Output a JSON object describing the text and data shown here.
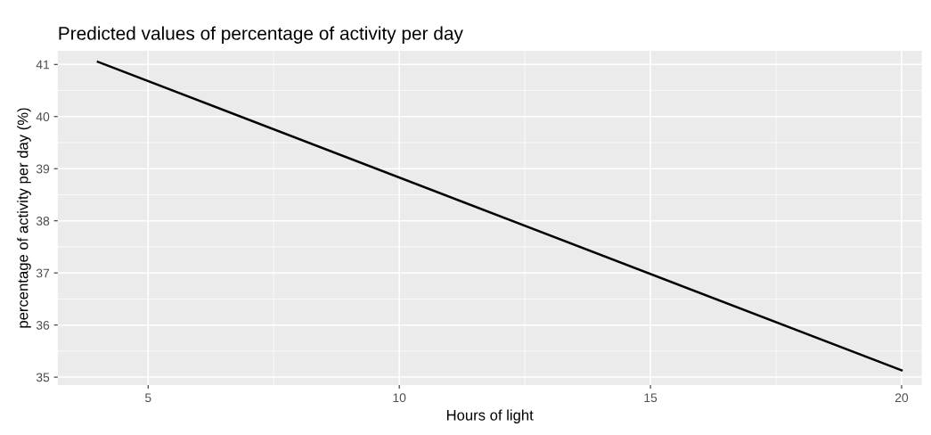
{
  "chart_data": {
    "type": "line",
    "title": "Predicted values of percentage of activity per day",
    "xlabel": "Hours of light",
    "ylabel": "percentage of activity per day (%)",
    "x": [
      4,
      20
    ],
    "series": [
      {
        "color": "#000000",
        "values": [
          41.05,
          35.13
        ]
      }
    ],
    "xlim": [
      3.2,
      20.4
    ],
    "xticks": [
      5,
      10,
      15,
      20
    ],
    "ylim": [
      34.85,
      41.26
    ],
    "yticks": [
      35,
      36,
      37,
      38,
      39,
      40,
      41
    ],
    "grid": true,
    "legend": false,
    "marker": "none",
    "line_style": "solid"
  }
}
